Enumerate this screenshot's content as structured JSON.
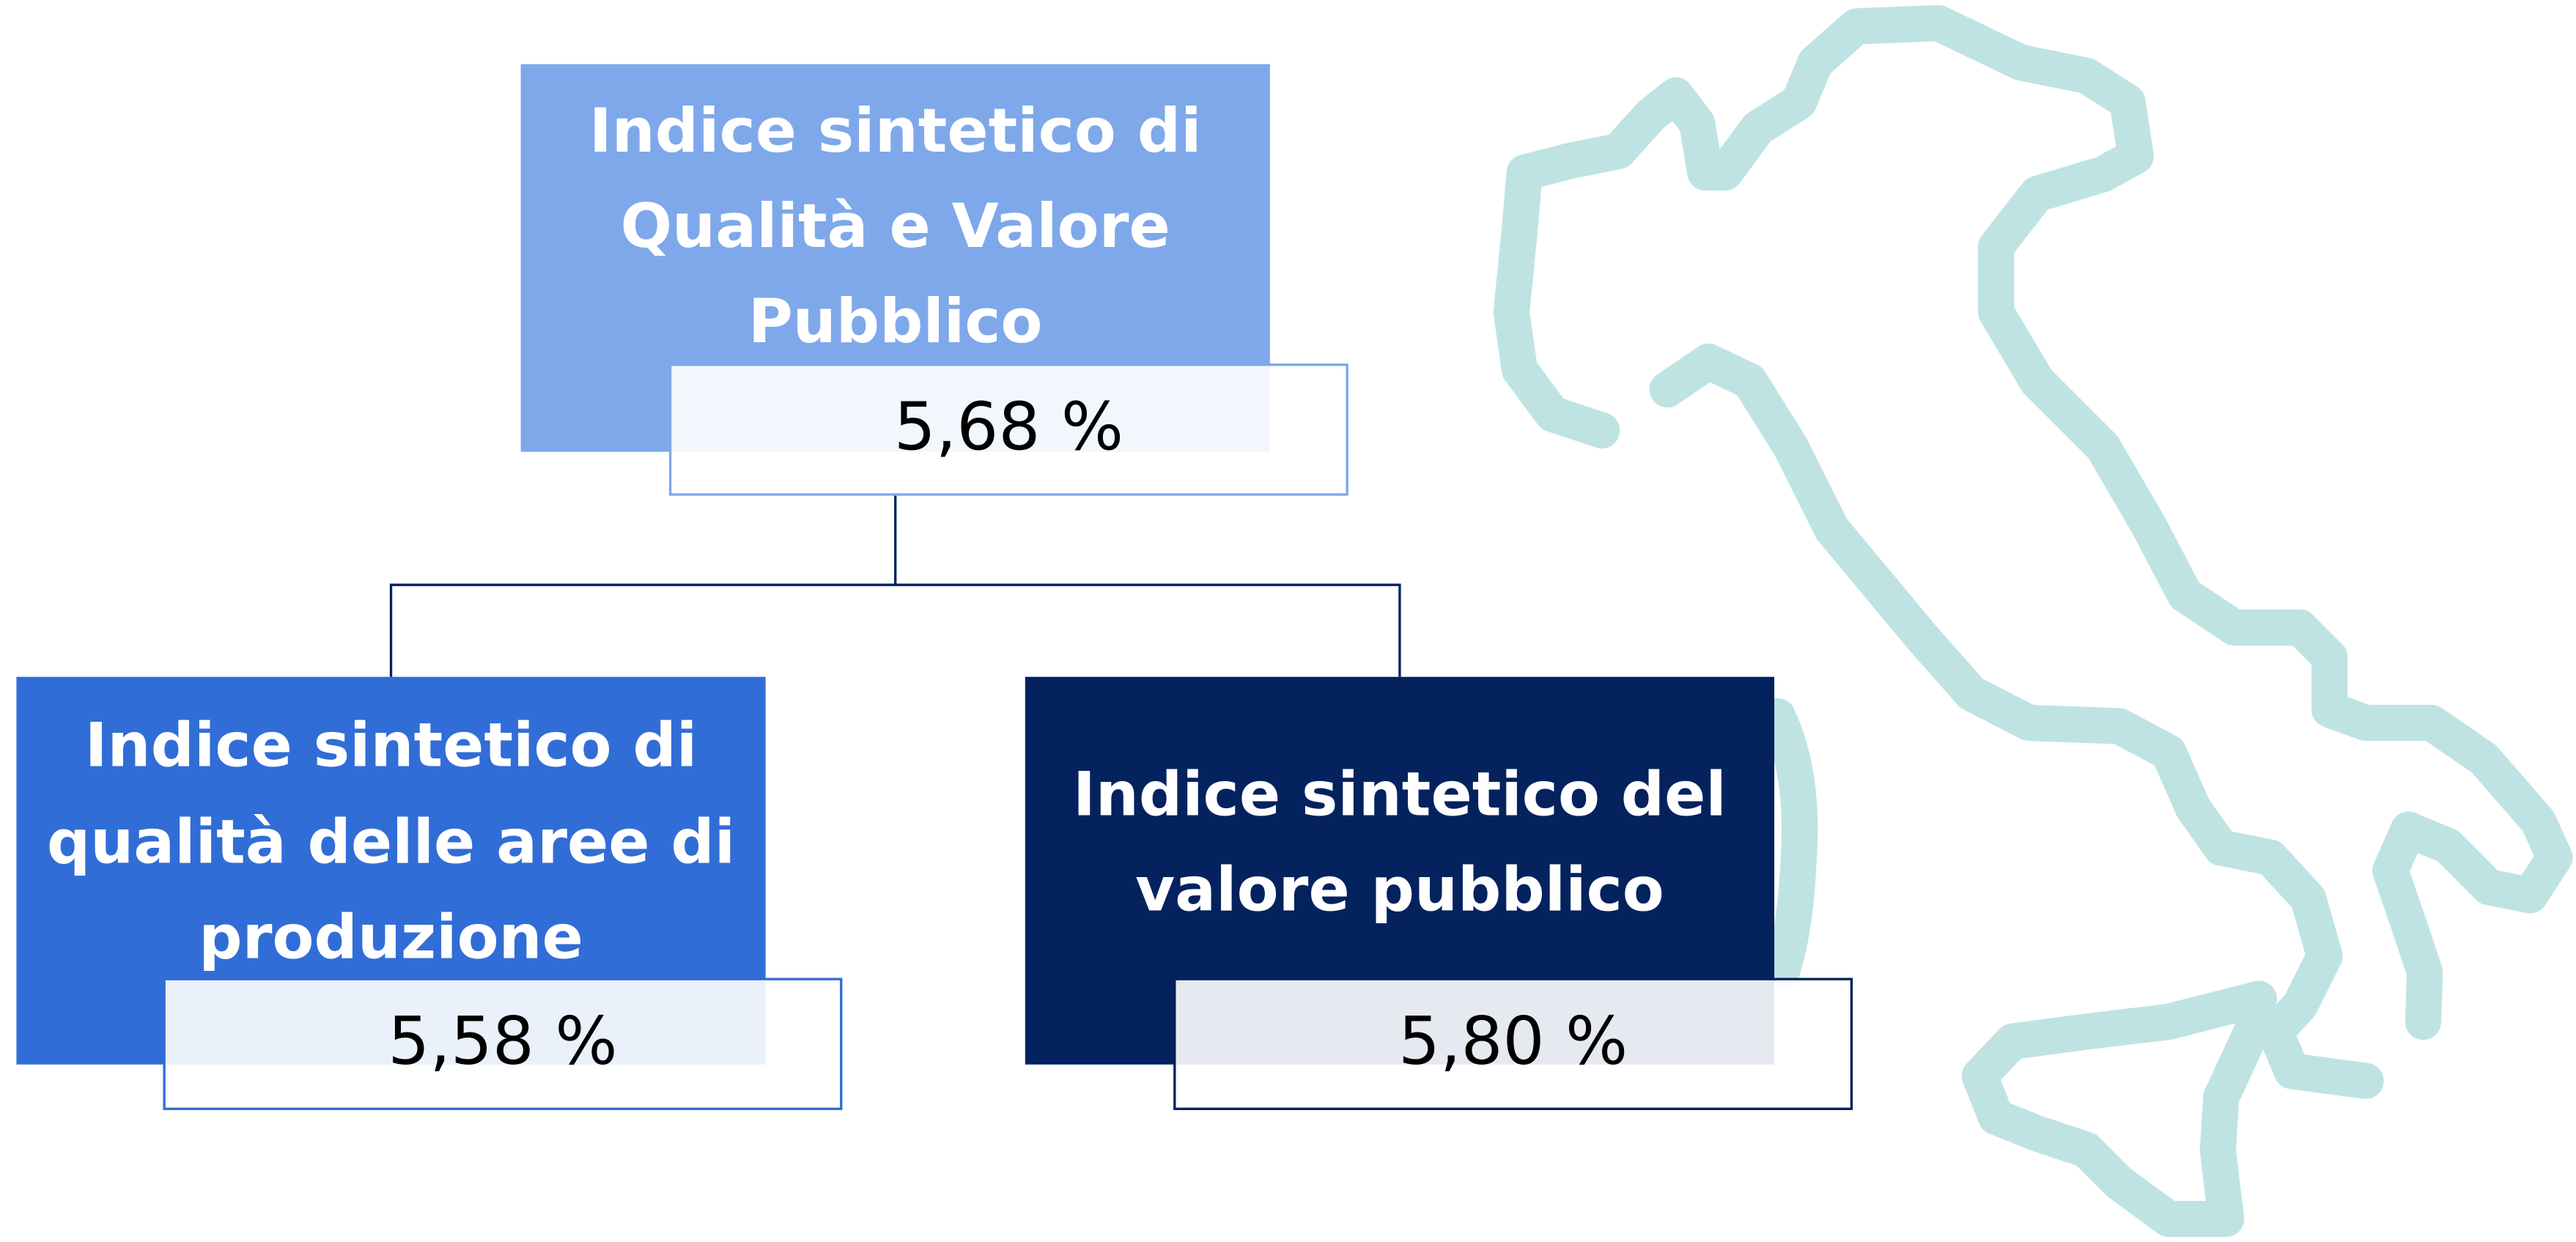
{
  "nodes": [
    {
      "label": [
        "Indice sintetico di",
        "Qualità e Valore",
        "Pubblico"
      ],
      "value": "5,68 %"
    },
    {
      "label": [
        "Indice sintetico di",
        "qualità delle aree di",
        "produzione"
      ],
      "value": "5,58 %"
    },
    {
      "label": [
        "Indice sintetico del",
        "valore pubblico"
      ],
      "value": "5,80 %"
    }
  ]
}
